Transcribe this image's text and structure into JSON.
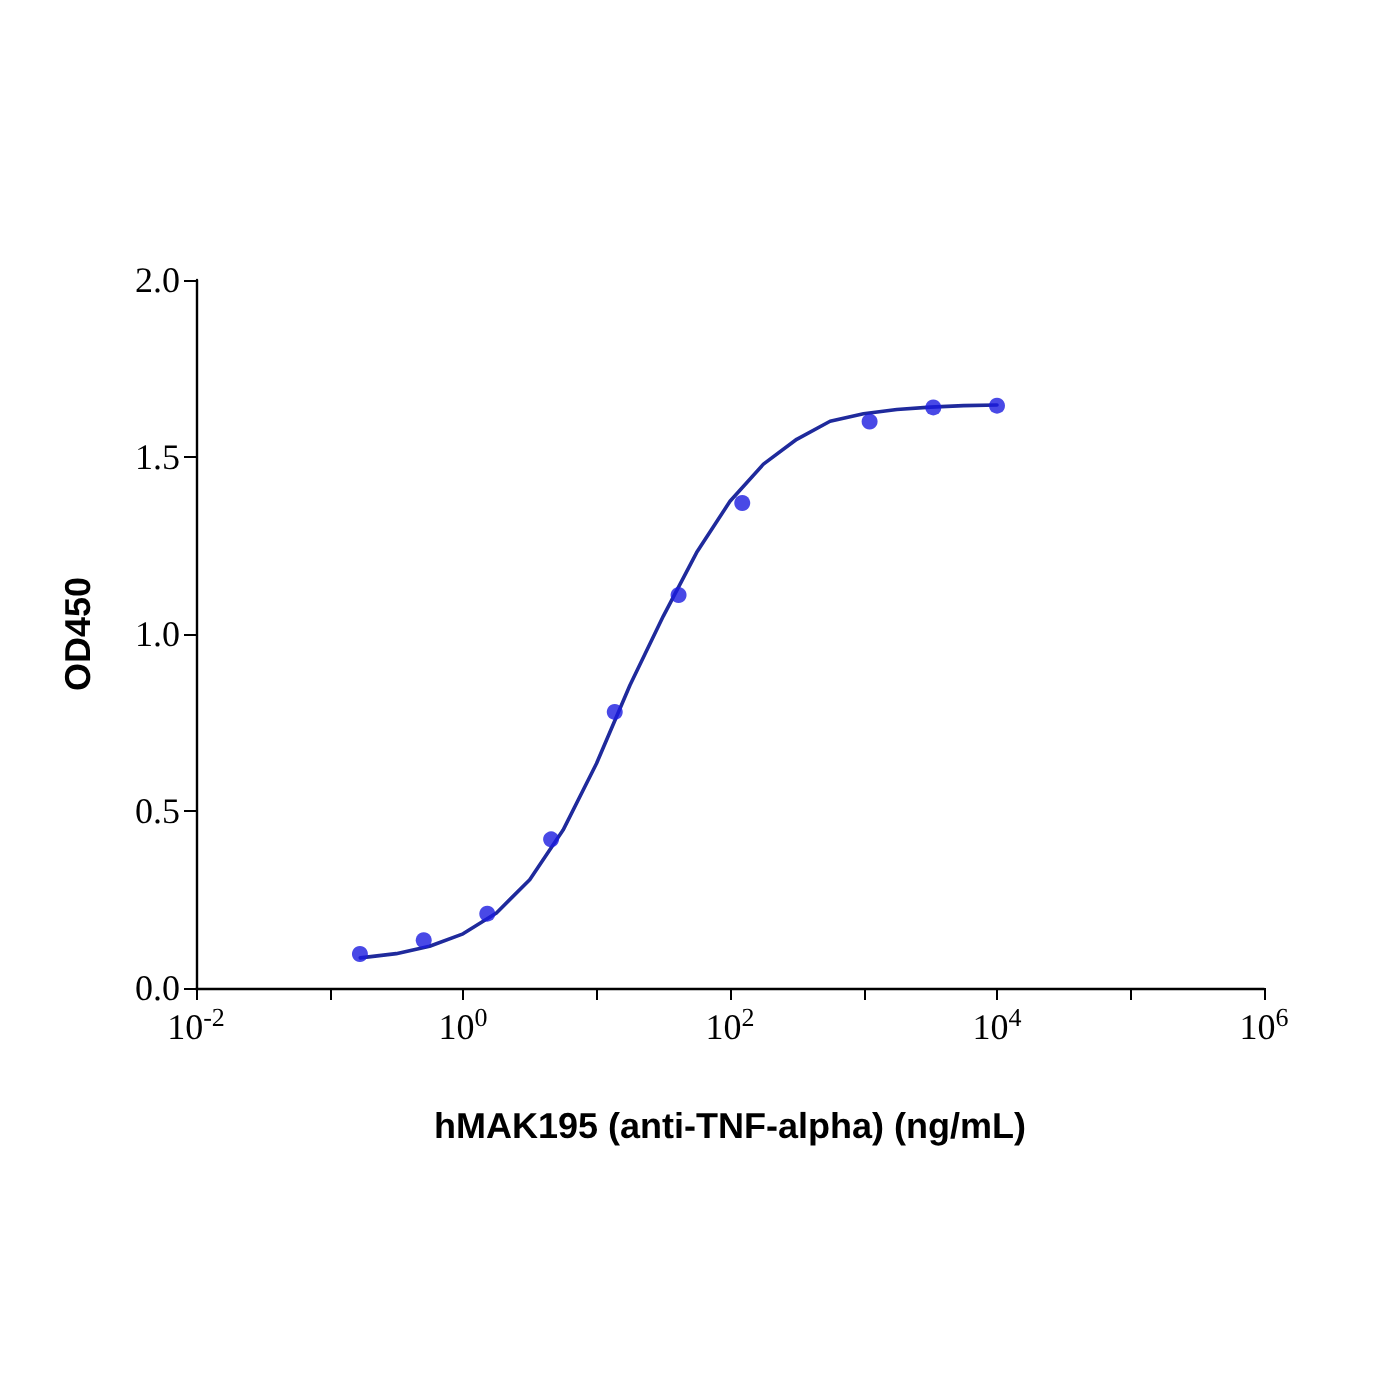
{
  "chart_data": {
    "type": "scatter",
    "xlabel": "hMAK195 (anti-TNF-alpha) (ng/mL)",
    "ylabel": "OD450",
    "log": "x",
    "grid": false,
    "marker": "circle",
    "x": [
      0.169,
      0.508,
      1.52,
      4.57,
      13.7,
      41.2,
      123.5,
      1111,
      3333,
      10000
    ],
    "series": [
      {
        "color": "#1c1ce0",
        "values": [
          0.096,
          0.135,
          0.21,
          0.42,
          0.78,
          1.11,
          1.37,
          1.6,
          1.64,
          1.645
        ]
      },
      {
        "type": "line",
        "color": "#1f2a9c",
        "marker": "none",
        "line_style": "solid",
        "x": [
          0.17,
          0.316,
          0.562,
          1,
          1.78,
          3.16,
          5.62,
          10,
          17.8,
          31.6,
          56.2,
          100,
          178,
          316,
          562,
          1000,
          1778,
          3162,
          5623,
          10000
        ],
        "values": [
          0.085,
          0.097,
          0.118,
          0.153,
          0.212,
          0.306,
          0.446,
          0.634,
          0.855,
          1.05,
          1.23,
          1.375,
          1.48,
          1.55,
          1.601,
          1.622,
          1.634,
          1.641,
          1.645,
          1.647
        ]
      }
    ],
    "xlim": [
      0.01,
      1000000
    ],
    "xticks": [
      {
        "value": 0.01,
        "label": "10$^{-2}$"
      },
      {
        "value": 0.1,
        "label": null
      },
      {
        "value": 1,
        "label": "10$^{0}$"
      },
      {
        "value": 10,
        "label": null
      },
      {
        "value": 100,
        "label": "10$^{2}$"
      },
      {
        "value": 1000,
        "label": null
      },
      {
        "value": 10000,
        "label": "10$^{4}$"
      },
      {
        "value": 100000,
        "label": null
      },
      {
        "value": 1000000,
        "label": "10$^{6}$"
      }
    ],
    "ylim": [
      0,
      2.0
    ],
    "yticks": [
      {
        "value": 0,
        "label": "0.0"
      },
      {
        "value": 0.5,
        "label": "0.5"
      },
      {
        "value": 1,
        "label": "1.0"
      },
      {
        "value": 1.5,
        "label": "1.5"
      },
      {
        "value": 2,
        "label": "2.0"
      }
    ]
  }
}
